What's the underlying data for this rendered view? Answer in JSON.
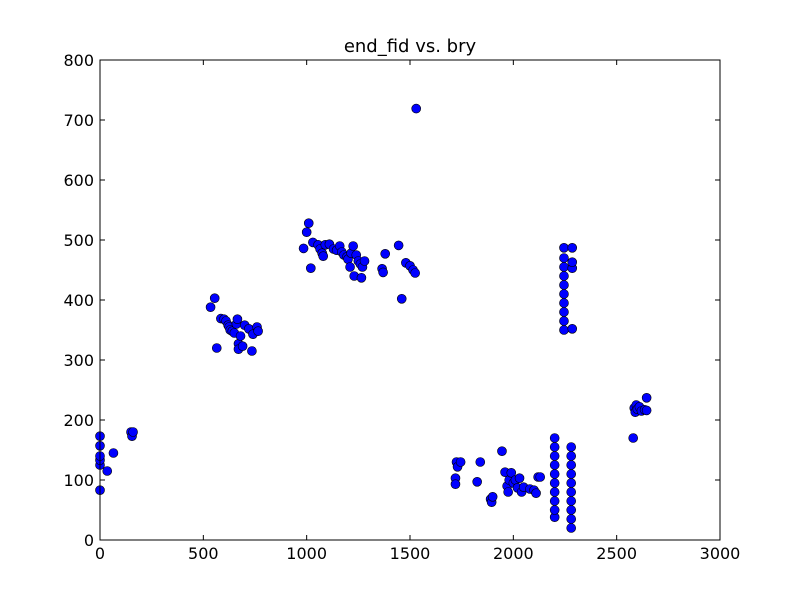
{
  "chart_data": {
    "type": "scatter",
    "title": "end_fid vs. bry",
    "xlabel": "",
    "ylabel": "",
    "xlim": [
      0,
      3000
    ],
    "ylim": [
      0,
      800
    ],
    "xticks": [
      0,
      500,
      1000,
      1500,
      2000,
      2500,
      3000
    ],
    "yticks": [
      0,
      100,
      200,
      300,
      400,
      500,
      600,
      700,
      800
    ],
    "xtick_labels": [
      "0",
      "500",
      "1000",
      "1500",
      "2000",
      "2500",
      "3000"
    ],
    "ytick_labels": [
      "0",
      "100",
      "200",
      "300",
      "400",
      "500",
      "600",
      "700",
      "800"
    ],
    "grid": false,
    "marker_color": "#0000ff",
    "series": [
      {
        "points": [
          [
            0,
            83
          ],
          [
            0,
            125
          ],
          [
            0,
            133
          ],
          [
            0,
            140
          ],
          [
            0,
            157
          ],
          [
            0,
            173
          ],
          [
            35,
            115
          ],
          [
            65,
            145
          ],
          [
            150,
            180
          ],
          [
            155,
            173
          ],
          [
            160,
            180
          ],
          [
            535,
            388
          ],
          [
            555,
            403
          ],
          [
            565,
            320
          ],
          [
            585,
            369
          ],
          [
            600,
            368
          ],
          [
            610,
            365
          ],
          [
            620,
            358
          ],
          [
            625,
            355
          ],
          [
            630,
            350
          ],
          [
            640,
            348
          ],
          [
            650,
            345
          ],
          [
            660,
            360
          ],
          [
            665,
            368
          ],
          [
            670,
            327
          ],
          [
            670,
            318
          ],
          [
            680,
            340
          ],
          [
            690,
            323
          ],
          [
            700,
            358
          ],
          [
            720,
            352
          ],
          [
            735,
            315
          ],
          [
            740,
            343
          ],
          [
            760,
            355
          ],
          [
            765,
            348
          ],
          [
            985,
            486
          ],
          [
            1000,
            513
          ],
          [
            1010,
            528
          ],
          [
            1020,
            453
          ],
          [
            1030,
            496
          ],
          [
            1055,
            492
          ],
          [
            1065,
            485
          ],
          [
            1075,
            478
          ],
          [
            1080,
            473
          ],
          [
            1090,
            492
          ],
          [
            1110,
            493
          ],
          [
            1130,
            485
          ],
          [
            1145,
            483
          ],
          [
            1160,
            490
          ],
          [
            1170,
            480
          ],
          [
            1180,
            475
          ],
          [
            1195,
            472
          ],
          [
            1200,
            468
          ],
          [
            1210,
            455
          ],
          [
            1215,
            478
          ],
          [
            1225,
            490
          ],
          [
            1230,
            440
          ],
          [
            1240,
            475
          ],
          [
            1250,
            465
          ],
          [
            1260,
            460
          ],
          [
            1265,
            437
          ],
          [
            1270,
            455
          ],
          [
            1280,
            465
          ],
          [
            1365,
            452
          ],
          [
            1370,
            446
          ],
          [
            1380,
            477
          ],
          [
            1445,
            491
          ],
          [
            1460,
            402
          ],
          [
            1480,
            462
          ],
          [
            1500,
            457
          ],
          [
            1515,
            450
          ],
          [
            1525,
            445
          ],
          [
            1530,
            719
          ],
          [
            1720,
            103
          ],
          [
            1720,
            93
          ],
          [
            1725,
            130
          ],
          [
            1730,
            122
          ],
          [
            1745,
            130
          ],
          [
            1825,
            97
          ],
          [
            1840,
            130
          ],
          [
            1890,
            68
          ],
          [
            1895,
            63
          ],
          [
            1900,
            72
          ],
          [
            1945,
            148
          ],
          [
            1960,
            113
          ],
          [
            1970,
            90
          ],
          [
            1975,
            80
          ],
          [
            1980,
            100
          ],
          [
            1990,
            112
          ],
          [
            2000,
            95
          ],
          [
            2010,
            100
          ],
          [
            2020,
            87
          ],
          [
            2030,
            103
          ],
          [
            2040,
            80
          ],
          [
            2050,
            88
          ],
          [
            2080,
            85
          ],
          [
            2100,
            83
          ],
          [
            2110,
            78
          ],
          [
            2120,
            105
          ],
          [
            2130,
            105
          ],
          [
            2200,
            38
          ],
          [
            2200,
            50
          ],
          [
            2200,
            65
          ],
          [
            2200,
            80
          ],
          [
            2200,
            95
          ],
          [
            2200,
            110
          ],
          [
            2200,
            125
          ],
          [
            2200,
            140
          ],
          [
            2200,
            155
          ],
          [
            2200,
            170
          ],
          [
            2245,
            350
          ],
          [
            2245,
            365
          ],
          [
            2245,
            380
          ],
          [
            2245,
            395
          ],
          [
            2245,
            410
          ],
          [
            2245,
            425
          ],
          [
            2245,
            440
          ],
          [
            2245,
            455
          ],
          [
            2245,
            470
          ],
          [
            2245,
            487
          ],
          [
            2280,
            20
          ],
          [
            2280,
            35
          ],
          [
            2280,
            50
          ],
          [
            2280,
            65
          ],
          [
            2280,
            80
          ],
          [
            2280,
            95
          ],
          [
            2280,
            110
          ],
          [
            2280,
            125
          ],
          [
            2280,
            140
          ],
          [
            2280,
            155
          ],
          [
            2285,
            352
          ],
          [
            2285,
            453
          ],
          [
            2285,
            463
          ],
          [
            2285,
            487
          ],
          [
            2580,
            170
          ],
          [
            2585,
            220
          ],
          [
            2590,
            213
          ],
          [
            2595,
            225
          ],
          [
            2600,
            218
          ],
          [
            2610,
            222
          ],
          [
            2620,
            215
          ],
          [
            2635,
            217
          ],
          [
            2645,
            216
          ],
          [
            2645,
            237
          ]
        ]
      }
    ]
  }
}
